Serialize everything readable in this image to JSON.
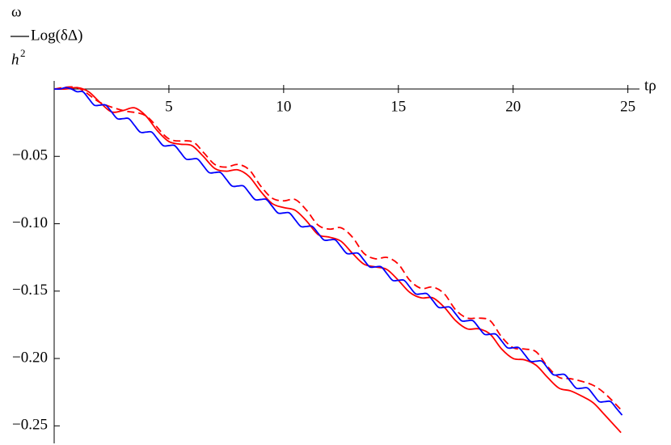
{
  "chart_data": {
    "type": "line",
    "x_label": "tρ",
    "y_label": {
      "numerator": "ω",
      "denominator": "h",
      "exponent": "2",
      "text": "Log(δΔ)"
    },
    "xlim": [
      0,
      25.4
    ],
    "ylim": [
      -0.26,
      0.006
    ],
    "xticks": [
      5,
      10,
      15,
      20,
      25
    ],
    "yticks": [
      {
        "value": -0.05,
        "label": "−0.05"
      },
      {
        "value": -0.1,
        "label": "−0.10"
      },
      {
        "value": -0.15,
        "label": "−0.15"
      },
      {
        "value": -0.2,
        "label": "−0.20"
      },
      {
        "value": -0.25,
        "label": "−0.25"
      }
    ],
    "grid": false,
    "series": [
      {
        "color": "#0000ff",
        "dashed": false,
        "x": [
          0,
          0.25,
          0.5,
          0.75,
          1,
          1.25,
          1.5,
          1.75,
          2,
          2.25,
          2.5,
          2.75,
          3,
          3.25,
          3.5,
          3.75,
          4,
          4.25,
          4.5,
          4.75,
          5,
          5.25,
          5.5,
          5.75,
          6,
          6.25,
          6.5,
          6.75,
          7,
          7.25,
          7.5,
          7.75,
          8,
          8.25,
          8.5,
          8.75,
          9,
          9.25,
          9.5,
          9.75,
          10,
          10.25,
          10.5,
          10.75,
          11,
          11.25,
          11.5,
          11.75,
          12,
          12.25,
          12.5,
          12.75,
          13,
          13.25,
          13.5,
          13.75,
          14,
          14.25,
          14.5,
          14.75,
          15,
          15.25,
          15.5,
          15.75,
          16,
          16.25,
          16.5,
          16.75,
          17,
          17.25,
          17.5,
          17.75,
          18,
          18.25,
          18.5,
          18.75,
          19,
          19.25,
          19.5,
          19.75,
          20,
          20.25,
          20.5,
          20.75,
          21,
          21.25,
          21.5,
          21.75,
          22,
          22.25,
          22.5,
          22.75,
          23,
          23.25,
          23.5,
          23.75,
          24,
          24.25,
          24.5,
          24.75
        ],
        "values": [
          0,
          0,
          0.001,
          0,
          -0.002,
          -0.002,
          -0.007,
          -0.012,
          -0.012,
          -0.012,
          -0.017,
          -0.022,
          -0.022,
          -0.022,
          -0.027,
          -0.032,
          -0.032,
          -0.032,
          -0.037,
          -0.042,
          -0.042,
          -0.042,
          -0.047,
          -0.052,
          -0.052,
          -0.052,
          -0.057,
          -0.062,
          -0.062,
          -0.062,
          -0.067,
          -0.072,
          -0.072,
          -0.072,
          -0.077,
          -0.082,
          -0.082,
          -0.082,
          -0.087,
          -0.092,
          -0.092,
          -0.092,
          -0.097,
          -0.102,
          -0.102,
          -0.102,
          -0.107,
          -0.112,
          -0.112,
          -0.112,
          -0.117,
          -0.122,
          -0.122,
          -0.122,
          -0.127,
          -0.132,
          -0.132,
          -0.132,
          -0.137,
          -0.142,
          -0.142,
          -0.142,
          -0.147,
          -0.152,
          -0.152,
          -0.152,
          -0.157,
          -0.162,
          -0.162,
          -0.162,
          -0.167,
          -0.172,
          -0.172,
          -0.172,
          -0.177,
          -0.182,
          -0.182,
          -0.182,
          -0.187,
          -0.192,
          -0.192,
          -0.192,
          -0.197,
          -0.202,
          -0.202,
          -0.202,
          -0.207,
          -0.212,
          -0.212,
          -0.212,
          -0.217,
          -0.222,
          -0.222,
          -0.222,
          -0.227,
          -0.232,
          -0.232,
          -0.232,
          -0.237,
          -0.242
        ]
      },
      {
        "color": "#ff0000",
        "dashed": false,
        "x": [
          0,
          0.5,
          1,
          1.5,
          2,
          2.5,
          3,
          3.5,
          4,
          4.5,
          5,
          5.5,
          6,
          6.5,
          7,
          7.5,
          8,
          8.5,
          9,
          9.5,
          10,
          10.5,
          11,
          11.5,
          12,
          12.5,
          13,
          13.5,
          14,
          14.5,
          15,
          15.5,
          16,
          16.5,
          17,
          17.5,
          18,
          18.5,
          19,
          19.5,
          20,
          20.5,
          21,
          21.5,
          22,
          22.5,
          23,
          23.5,
          24,
          24.7
        ],
        "values": [
          0,
          0,
          0.001,
          -0.002,
          -0.01,
          -0.017,
          -0.016,
          -0.014,
          -0.02,
          -0.031,
          -0.039,
          -0.041,
          -0.042,
          -0.05,
          -0.059,
          -0.061,
          -0.06,
          -0.065,
          -0.076,
          -0.085,
          -0.088,
          -0.09,
          -0.098,
          -0.108,
          -0.11,
          -0.113,
          -0.122,
          -0.13,
          -0.132,
          -0.134,
          -0.142,
          -0.151,
          -0.155,
          -0.155,
          -0.162,
          -0.172,
          -0.178,
          -0.178,
          -0.182,
          -0.193,
          -0.2,
          -0.201,
          -0.205,
          -0.214,
          -0.222,
          -0.224,
          -0.228,
          -0.233,
          -0.242,
          -0.255
        ]
      },
      {
        "color": "#ff0000",
        "dashed": true,
        "x": [
          0,
          1,
          2,
          3,
          4,
          5,
          6,
          6.5,
          7,
          7.5,
          8,
          8.5,
          9,
          9.5,
          10,
          10.5,
          11,
          11.5,
          12,
          12.5,
          13,
          13.5,
          14,
          14.5,
          15,
          15.5,
          16,
          16.5,
          17,
          17.5,
          18,
          18.5,
          19,
          19.5,
          20,
          20.5,
          21,
          21.5,
          22,
          22.5,
          23,
          23.5,
          24,
          24.7
        ],
        "values": [
          0,
          0.001,
          -0.01,
          -0.016,
          -0.02,
          -0.037,
          -0.039,
          -0.047,
          -0.056,
          -0.058,
          -0.056,
          -0.06,
          -0.072,
          -0.081,
          -0.083,
          -0.082,
          -0.09,
          -0.101,
          -0.104,
          -0.103,
          -0.11,
          -0.122,
          -0.126,
          -0.125,
          -0.13,
          -0.142,
          -0.148,
          -0.147,
          -0.152,
          -0.164,
          -0.17,
          -0.17,
          -0.172,
          -0.184,
          -0.192,
          -0.193,
          -0.195,
          -0.206,
          -0.214,
          -0.215,
          -0.217,
          -0.22,
          -0.226,
          -0.238
        ]
      }
    ]
  }
}
